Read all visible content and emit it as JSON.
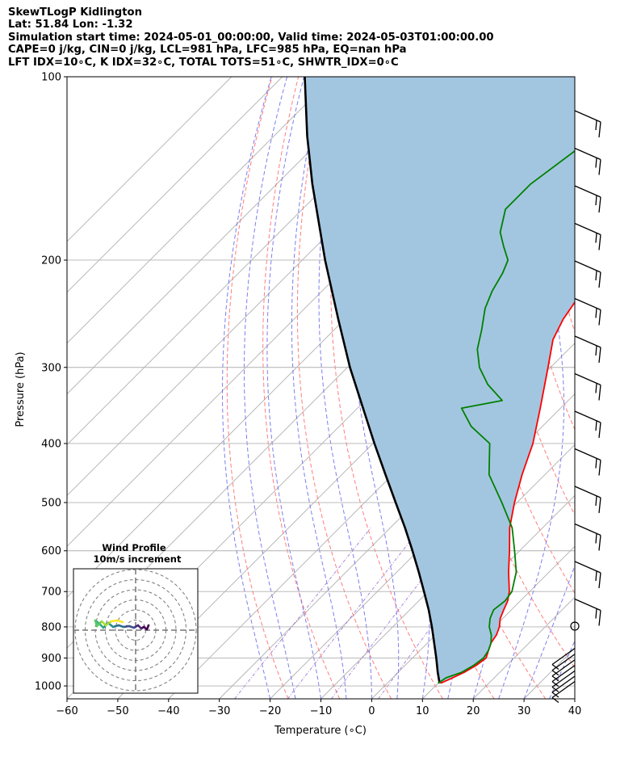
{
  "header": {
    "line1": "SkewTLogP Kidlington",
    "line2": "Lat: 51.84   Lon: -1.32",
    "line3": "Simulation start time: 2024-05-01_00:00:00, Valid time: 2024-05-03T01:00:00.00",
    "line4": "CAPE=0 j/kg, CIN=0 j/kg, LCL=981 hPa, LFC=985 hPa, EQ=nan hPa",
    "line5": "LFT IDX=10∘C, K IDX=32∘C, TOTAL TOTS=51∘C, SHWTR_IDX=0∘C"
  },
  "chart_data": [
    {
      "type": "line",
      "subtype": "skew-t log-p",
      "xlabel": "Temperature (∘C)",
      "ylabel": "Pressure (hPa)",
      "xlim": [
        -60,
        40
      ],
      "ylim": [
        1050,
        100
      ],
      "y_scale": "log",
      "x_ticks": [
        "−60",
        "−50",
        "−40",
        "−30",
        "−20",
        "−10",
        "0",
        "10",
        "20",
        "30",
        "40"
      ],
      "y_ticks": [
        "100",
        "200",
        "300",
        "400",
        "500",
        "600",
        "700",
        "800",
        "900",
        "1000"
      ],
      "grid": true,
      "colors": {
        "temperature": "#ff0000",
        "dewpoint": "#008000",
        "parcel": "#000000",
        "shade": "#a3c6e0",
        "isotherm": "#b0b0b0",
        "dry_adiabat": "#ff6666",
        "moist_adiabat": "#6666ee",
        "mixing_ratio": "#9966cc"
      },
      "series": [
        {
          "key": "temperature",
          "pressure": [
            990,
            975,
            950,
            925,
            900,
            875,
            850,
            825,
            800,
            775,
            750,
            725,
            700,
            650,
            600,
            550,
            500,
            450,
            400,
            350,
            300,
            270,
            250,
            235,
            220,
            200,
            185,
            170,
            160,
            150,
            140,
            125,
            110,
            100
          ],
          "values": [
            10.5,
            11.5,
            13.0,
            14.0,
            14.5,
            13.5,
            12.5,
            12.0,
            11.0,
            9.5,
            8.5,
            7.5,
            6.0,
            2.0,
            -2.0,
            -6.5,
            -10.5,
            -14.5,
            -18.5,
            -24.0,
            -30.5,
            -35.0,
            -37.0,
            -38.0,
            -39.0,
            -41.5,
            -44.0,
            -47.5,
            -48.5,
            -49.0,
            -50.0,
            -51.5,
            -53.5,
            -54.5
          ]
        },
        {
          "key": "dewpoint",
          "pressure": [
            990,
            970,
            950,
            925,
            900,
            875,
            850,
            825,
            800,
            775,
            750,
            725,
            700,
            650,
            600,
            550,
            500,
            450,
            400,
            375,
            350,
            340,
            320,
            300,
            280,
            260,
            240,
            225,
            210,
            200,
            190,
            180,
            165,
            150,
            130,
            110,
            100
          ],
          "values": [
            10.0,
            10.5,
            12.5,
            13.5,
            14.0,
            13.5,
            12.5,
            11.0,
            9.0,
            7.5,
            6.5,
            7.0,
            6.5,
            3.5,
            -1.0,
            -6.0,
            -13.0,
            -21.0,
            -27.0,
            -34.0,
            -39.5,
            -33.0,
            -39.0,
            -44.0,
            -48.0,
            -51.0,
            -54.5,
            -56.5,
            -58.0,
            -59.5,
            -63.0,
            -66.5,
            -70.0,
            -70.0,
            -67.5,
            -64.5,
            -61.5
          ]
        },
        {
          "key": "parcel",
          "pressure": [
            990,
            950,
            900,
            850,
            800,
            750,
            700,
            650,
            600,
            550,
            500,
            450,
            400,
            350,
            300,
            250,
            200,
            150,
            125,
            100
          ],
          "values": [
            10.3,
            7.8,
            4.7,
            1.3,
            -2.3,
            -6.3,
            -10.8,
            -15.7,
            -21.1,
            -27.1,
            -33.9,
            -41.4,
            -49.7,
            -58.9,
            -69.5,
            -81.3,
            -95.5,
            -113.0,
            -123.5,
            -135.6
          ]
        }
      ],
      "barb_pressures": [
        900,
        920,
        940,
        960,
        980,
        1000,
        1020
      ],
      "inset": {
        "title": "Wind Profile",
        "subtitle": "10m/s increment",
        "type": "hodograph"
      }
    }
  ]
}
